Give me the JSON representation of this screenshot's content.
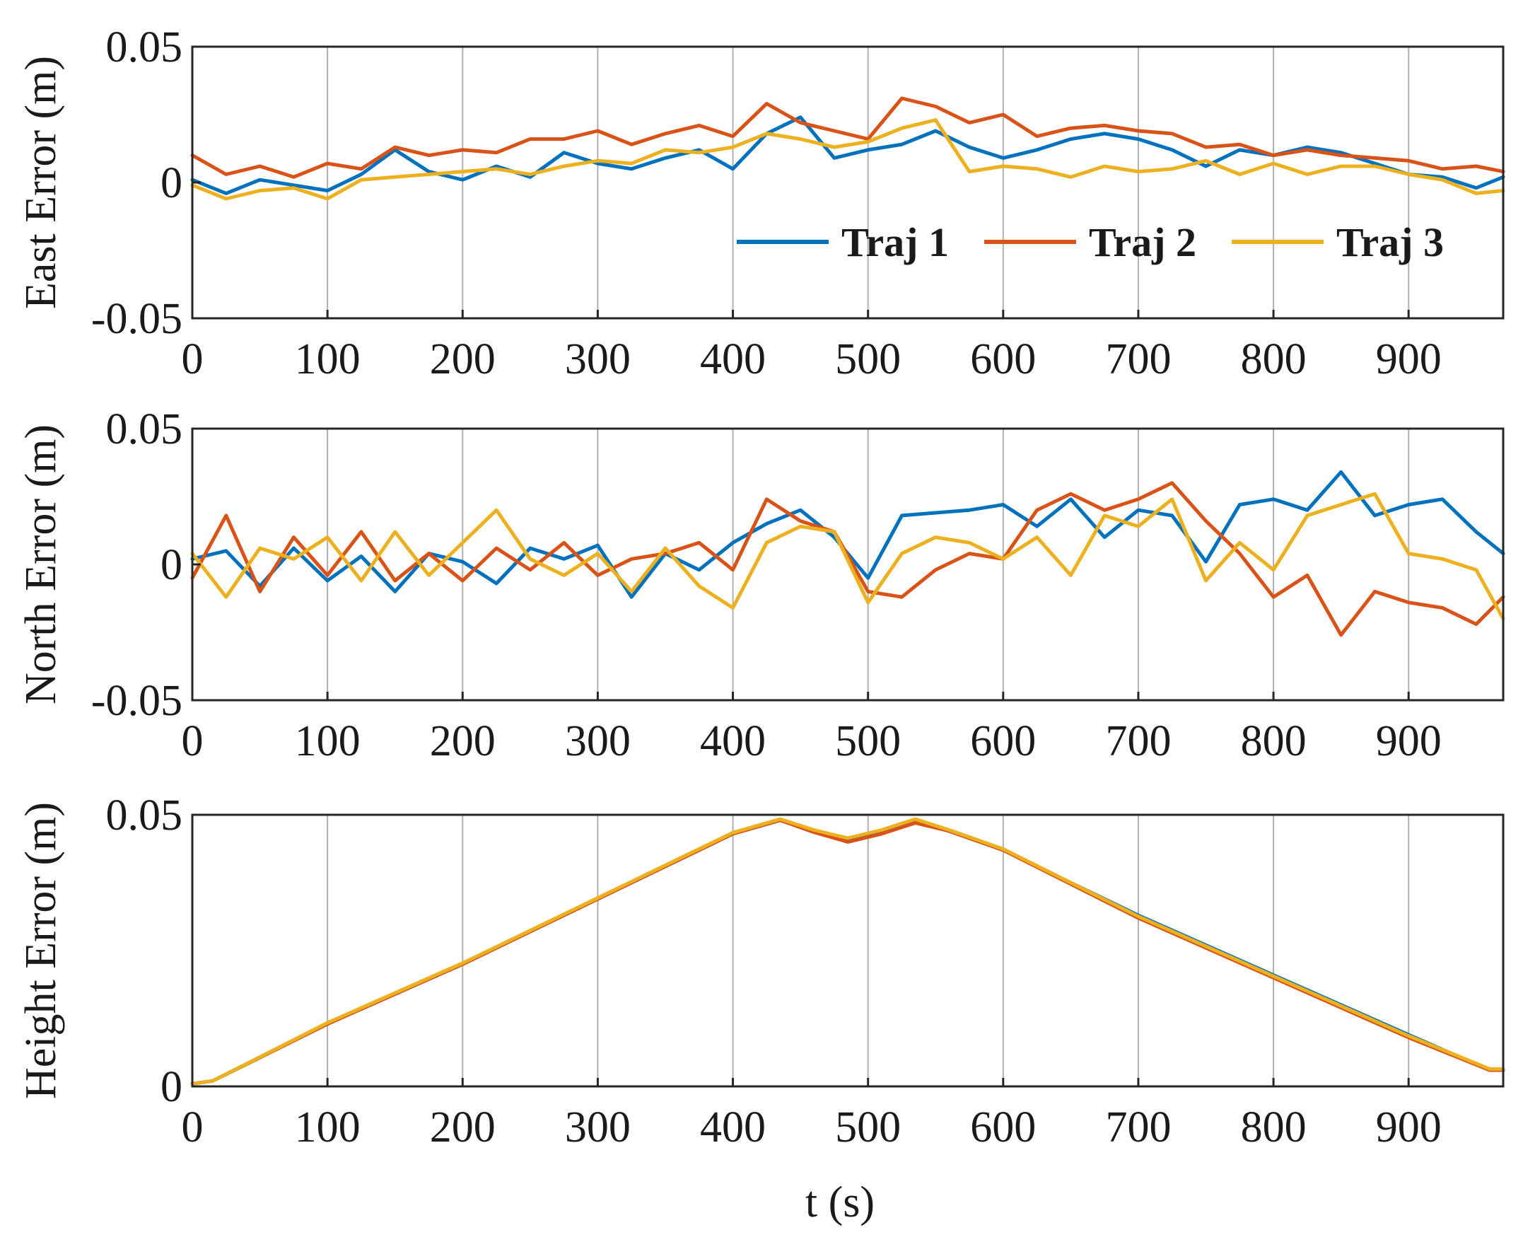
{
  "colors": {
    "traj1": "#0072BD",
    "traj2": "#D95319",
    "traj3": "#EDB120",
    "axis": "#262626",
    "grid": "#b0b0b0"
  },
  "chart_data": [
    {
      "type": "line",
      "name": "east",
      "ylabel": "East Error (m)",
      "xlabel": "",
      "xlim": [
        0,
        970
      ],
      "ylim": [
        -0.05,
        0.05
      ],
      "xticks": [
        0,
        100,
        200,
        300,
        400,
        500,
        600,
        700,
        800,
        900
      ],
      "xtick_labels": [
        "0",
        "100",
        "200",
        "300",
        "400",
        "500",
        "600",
        "700",
        "800",
        "900"
      ],
      "yticks": [
        -0.05,
        0,
        0.05
      ],
      "ytick_labels": [
        "-0.05",
        "0",
        "0.05"
      ],
      "grid": "x-only",
      "legend": {
        "placement": "bottom-right",
        "orientation": "horizontal",
        "entries": [
          "Traj 1",
          "Traj 2",
          "Traj 3"
        ]
      },
      "x": [
        0,
        25,
        50,
        75,
        100,
        125,
        150,
        175,
        200,
        225,
        250,
        275,
        300,
        325,
        350,
        375,
        400,
        425,
        450,
        475,
        500,
        525,
        550,
        575,
        600,
        625,
        650,
        675,
        700,
        725,
        750,
        775,
        800,
        825,
        850,
        875,
        900,
        925,
        950,
        970
      ],
      "series": [
        {
          "name": "Traj 1",
          "values": [
            0.001,
            -0.004,
            0.001,
            -0.001,
            -0.003,
            0.003,
            0.012,
            0.004,
            0.001,
            0.006,
            0.002,
            0.011,
            0.007,
            0.005,
            0.009,
            0.012,
            0.005,
            0.018,
            0.024,
            0.009,
            0.012,
            0.014,
            0.019,
            0.013,
            0.009,
            0.012,
            0.016,
            0.018,
            0.016,
            0.012,
            0.006,
            0.012,
            0.01,
            0.013,
            0.011,
            0.007,
            0.003,
            0.002,
            -0.002,
            0.002
          ]
        },
        {
          "name": "Traj 2",
          "values": [
            0.01,
            0.003,
            0.006,
            0.002,
            0.007,
            0.005,
            0.013,
            0.01,
            0.012,
            0.011,
            0.016,
            0.016,
            0.019,
            0.014,
            0.018,
            0.021,
            0.017,
            0.029,
            0.022,
            0.019,
            0.016,
            0.031,
            0.028,
            0.022,
            0.025,
            0.017,
            0.02,
            0.021,
            0.019,
            0.018,
            0.013,
            0.014,
            0.01,
            0.012,
            0.01,
            0.009,
            0.008,
            0.005,
            0.006,
            0.004
          ]
        },
        {
          "name": "Traj 3",
          "values": [
            -0.001,
            -0.006,
            -0.003,
            -0.002,
            -0.006,
            0.001,
            0.002,
            0.003,
            0.004,
            0.005,
            0.003,
            0.006,
            0.008,
            0.007,
            0.012,
            0.011,
            0.013,
            0.018,
            0.016,
            0.013,
            0.015,
            0.02,
            0.023,
            0.004,
            0.006,
            0.005,
            0.002,
            0.006,
            0.004,
            0.005,
            0.008,
            0.003,
            0.007,
            0.003,
            0.006,
            0.006,
            0.003,
            0.001,
            -0.004,
            -0.003
          ]
        }
      ]
    },
    {
      "type": "line",
      "name": "north",
      "ylabel": "North Error (m)",
      "xlabel": "",
      "xlim": [
        0,
        970
      ],
      "ylim": [
        -0.05,
        0.05
      ],
      "xticks": [
        0,
        100,
        200,
        300,
        400,
        500,
        600,
        700,
        800,
        900
      ],
      "xtick_labels": [
        "0",
        "100",
        "200",
        "300",
        "400",
        "500",
        "600",
        "700",
        "800",
        "900"
      ],
      "yticks": [
        -0.05,
        0,
        0.05
      ],
      "ytick_labels": [
        "-0.05",
        "0",
        "0.05"
      ],
      "grid": "x-only",
      "x": [
        0,
        25,
        50,
        75,
        100,
        125,
        150,
        175,
        200,
        225,
        250,
        275,
        300,
        325,
        350,
        375,
        400,
        425,
        450,
        475,
        500,
        525,
        550,
        575,
        600,
        625,
        650,
        675,
        700,
        725,
        750,
        775,
        800,
        825,
        850,
        875,
        900,
        925,
        950,
        970
      ],
      "series": [
        {
          "name": "Traj 1",
          "values": [
            0.002,
            0.005,
            -0.008,
            0.006,
            -0.006,
            0.003,
            -0.01,
            0.004,
            0.001,
            -0.007,
            0.006,
            0.002,
            0.007,
            -0.012,
            0.004,
            -0.002,
            0.008,
            0.015,
            0.02,
            0.01,
            -0.005,
            0.018,
            0.019,
            0.02,
            0.022,
            0.014,
            0.024,
            0.01,
            0.02,
            0.018,
            0.001,
            0.022,
            0.024,
            0.02,
            0.034,
            0.018,
            0.022,
            0.024,
            0.012,
            0.004
          ]
        },
        {
          "name": "Traj 2",
          "values": [
            -0.005,
            0.018,
            -0.01,
            0.01,
            -0.004,
            0.012,
            -0.006,
            0.004,
            -0.006,
            0.006,
            -0.002,
            0.008,
            -0.004,
            0.002,
            0.004,
            0.008,
            -0.002,
            0.024,
            0.016,
            0.012,
            -0.01,
            -0.012,
            -0.002,
            0.004,
            0.002,
            0.02,
            0.026,
            0.02,
            0.024,
            0.03,
            0.016,
            0.004,
            -0.012,
            -0.004,
            -0.026,
            -0.01,
            -0.014,
            -0.016,
            -0.022,
            -0.012
          ]
        },
        {
          "name": "Traj 3",
          "values": [
            0.004,
            -0.012,
            0.006,
            0.002,
            0.01,
            -0.006,
            0.012,
            -0.004,
            0.008,
            0.02,
            0.002,
            -0.004,
            0.004,
            -0.01,
            0.006,
            -0.008,
            -0.016,
            0.008,
            0.014,
            0.012,
            -0.014,
            0.004,
            0.01,
            0.008,
            0.002,
            0.01,
            -0.004,
            0.018,
            0.014,
            0.024,
            -0.006,
            0.008,
            -0.002,
            0.018,
            0.022,
            0.026,
            0.004,
            0.002,
            -0.002,
            -0.02
          ]
        }
      ]
    },
    {
      "type": "line",
      "name": "height",
      "ylabel": "Height Error (m)",
      "xlabel": "t (s)",
      "xlim": [
        0,
        970
      ],
      "ylim": [
        0,
        0.05
      ],
      "xticks": [
        0,
        100,
        200,
        300,
        400,
        500,
        600,
        700,
        800,
        900
      ],
      "xtick_labels": [
        "0",
        "100",
        "200",
        "300",
        "400",
        "500",
        "600",
        "700",
        "800",
        "900"
      ],
      "yticks": [
        0,
        0.05
      ],
      "ytick_labels": [
        "0",
        "0.05"
      ],
      "grid": "x-only",
      "x": [
        0,
        15,
        100,
        200,
        300,
        400,
        435,
        460,
        485,
        510,
        535,
        560,
        600,
        700,
        800,
        900,
        960,
        970
      ],
      "series": [
        {
          "name": "Traj 1",
          "values": [
            0.0005,
            0.001,
            0.0115,
            0.0225,
            0.0345,
            0.0465,
            0.049,
            0.047,
            0.0455,
            0.047,
            0.049,
            0.047,
            0.0435,
            0.0315,
            0.0205,
            0.0095,
            0.003,
            0.003
          ]
        },
        {
          "name": "Traj 2",
          "values": [
            0.0005,
            0.001,
            0.0115,
            0.0225,
            0.0345,
            0.0465,
            0.049,
            0.0468,
            0.045,
            0.0465,
            0.0485,
            0.047,
            0.0435,
            0.031,
            0.02,
            0.009,
            0.003,
            0.003
          ]
        },
        {
          "name": "Traj 3",
          "values": [
            0.0005,
            0.001,
            0.0117,
            0.0227,
            0.0347,
            0.0467,
            0.0492,
            0.0472,
            0.0457,
            0.0472,
            0.0492,
            0.0472,
            0.0437,
            0.0313,
            0.0203,
            0.0093,
            0.0032,
            0.0032
          ]
        }
      ]
    }
  ]
}
